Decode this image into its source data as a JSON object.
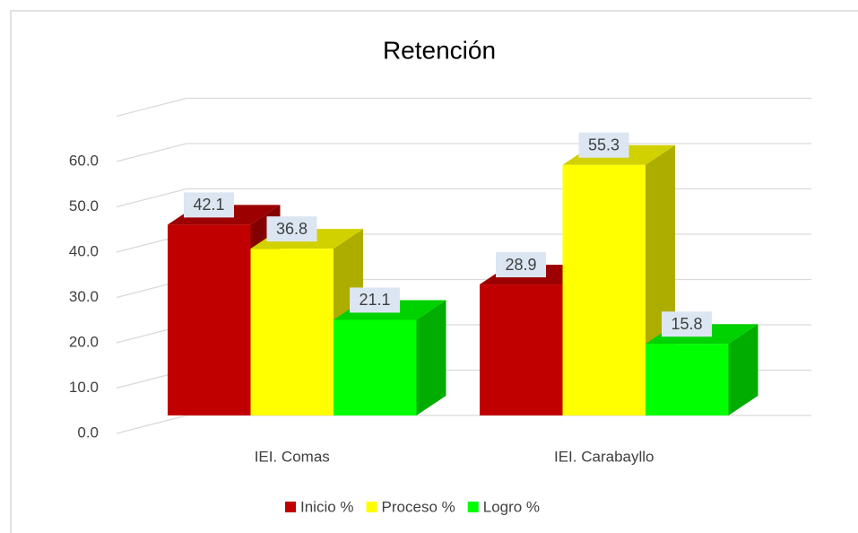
{
  "chart_data": {
    "type": "bar3d",
    "title": "Retención",
    "categories": [
      "IEI. Comas",
      "IEI. Carabayllo"
    ],
    "series": [
      {
        "name": "Inicio %",
        "color": "#c00000",
        "values": [
          42.1,
          28.9
        ]
      },
      {
        "name": "Proceso %",
        "color": "#ffff00",
        "values": [
          36.8,
          55.3
        ]
      },
      {
        "name": "Logro %",
        "color": "#00ff00",
        "values": [
          21.1,
          15.8
        ]
      }
    ],
    "ylim": [
      0,
      70
    ],
    "yticks": [
      {
        "value": 0,
        "label": "0.0"
      },
      {
        "value": 10,
        "label": "10.0"
      },
      {
        "value": 20,
        "label": "20.0"
      },
      {
        "value": 30,
        "label": "30.0"
      },
      {
        "value": 40,
        "label": "40.0"
      },
      {
        "value": 50,
        "label": "50.0"
      },
      {
        "value": 60,
        "label": "60.0"
      }
    ],
    "grid": true,
    "legend": "bottom"
  }
}
